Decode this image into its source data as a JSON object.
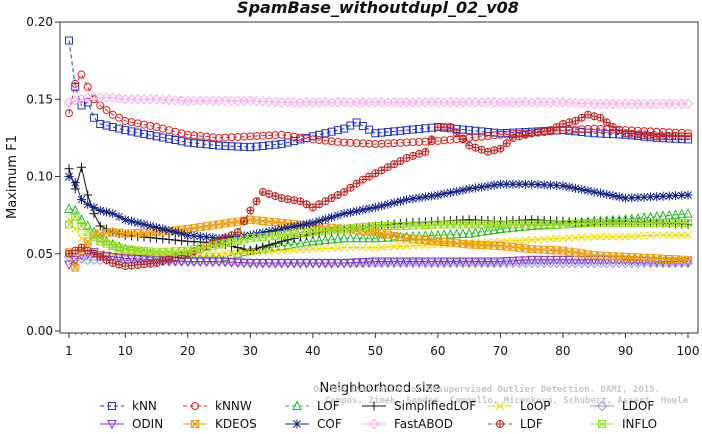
{
  "chart_data": {
    "type": "line",
    "title": "SpamBase_withoutdupl_02_v08",
    "xlabel": "Neighborhood size",
    "ylabel": "Maximum F1",
    "xlim": [
      1,
      100
    ],
    "ylim": [
      0,
      0.2
    ],
    "x_ticks": [
      "1",
      "10",
      "20",
      "30",
      "40",
      "50",
      "60",
      "70",
      "80",
      "90",
      "100"
    ],
    "y_ticks": [
      "0.00",
      "0.05",
      "0.10",
      "0.15",
      "0.20"
    ],
    "grid": false,
    "legend_position": "bottom",
    "credit_lines": [
      "Campos, Zimek, Sander, Campello, Micenková, Schubert, Assent, Houle",
      "On the Evaluation of Unsupervised Outlier Detection. DAMI, 2015."
    ],
    "series": [
      {
        "name": "kNN",
        "color": "#2233cc",
        "marker": "square",
        "dash": "4,3",
        "x": [
          1,
          2,
          3,
          4,
          5,
          6,
          8,
          10,
          15,
          20,
          25,
          30,
          35,
          40,
          45,
          47,
          50,
          55,
          60,
          65,
          70,
          75,
          80,
          85,
          90,
          95,
          100
        ],
        "y": [
          0.188,
          0.158,
          0.146,
          0.148,
          0.138,
          0.134,
          0.132,
          0.13,
          0.126,
          0.122,
          0.12,
          0.119,
          0.121,
          0.126,
          0.131,
          0.135,
          0.128,
          0.13,
          0.132,
          0.13,
          0.128,
          0.129,
          0.13,
          0.128,
          0.127,
          0.125,
          0.124
        ]
      },
      {
        "name": "kNNW",
        "color": "#dd2222",
        "marker": "circle",
        "dash": "4,3",
        "x": [
          1,
          2,
          3,
          4,
          5,
          6,
          8,
          10,
          15,
          20,
          25,
          30,
          35,
          40,
          45,
          50,
          55,
          60,
          65,
          70,
          75,
          80,
          85,
          90,
          95,
          100
        ],
        "y": [
          0.141,
          0.16,
          0.166,
          0.158,
          0.15,
          0.146,
          0.14,
          0.136,
          0.132,
          0.127,
          0.125,
          0.126,
          0.127,
          0.124,
          0.122,
          0.121,
          0.122,
          0.123,
          0.125,
          0.127,
          0.128,
          0.13,
          0.131,
          0.13,
          0.129,
          0.128
        ]
      },
      {
        "name": "LOF",
        "color": "#22bb22",
        "marker": "triangle",
        "dash": "4,3",
        "x": [
          1,
          2,
          3,
          4,
          5,
          6,
          8,
          10,
          15,
          20,
          25,
          30,
          35,
          40,
          45,
          50,
          55,
          60,
          65,
          70,
          75,
          80,
          85,
          90,
          95,
          100
        ],
        "y": [
          0.079,
          0.078,
          0.072,
          0.068,
          0.064,
          0.06,
          0.056,
          0.053,
          0.049,
          0.047,
          0.047,
          0.052,
          0.055,
          0.058,
          0.06,
          0.06,
          0.061,
          0.062,
          0.063,
          0.066,
          0.068,
          0.069,
          0.071,
          0.072,
          0.074,
          0.076
        ]
      },
      {
        "name": "SimplifiedLOF",
        "color": "#111111",
        "marker": "plus",
        "dash": "",
        "x": [
          1,
          2,
          3,
          4,
          5,
          6,
          8,
          10,
          15,
          20,
          25,
          30,
          35,
          40,
          45,
          50,
          55,
          60,
          65,
          70,
          75,
          80,
          85,
          90,
          95,
          100
        ],
        "y": [
          0.105,
          0.092,
          0.106,
          0.088,
          0.076,
          0.068,
          0.064,
          0.062,
          0.06,
          0.058,
          0.057,
          0.052,
          0.058,
          0.063,
          0.066,
          0.068,
          0.07,
          0.071,
          0.072,
          0.071,
          0.072,
          0.071,
          0.07,
          0.071,
          0.07,
          0.069
        ]
      },
      {
        "name": "LoOP",
        "color": "#eedd00",
        "marker": "x",
        "dash": "",
        "x": [
          1,
          2,
          3,
          4,
          5,
          6,
          8,
          10,
          15,
          20,
          25,
          30,
          35,
          40,
          45,
          50,
          55,
          60,
          65,
          70,
          75,
          80,
          85,
          90,
          95,
          100
        ],
        "y": [
          0.072,
          0.066,
          0.06,
          0.056,
          0.052,
          0.05,
          0.05,
          0.05,
          0.05,
          0.05,
          0.05,
          0.051,
          0.052,
          0.053,
          0.054,
          0.054,
          0.055,
          0.056,
          0.057,
          0.058,
          0.059,
          0.06,
          0.061,
          0.061,
          0.062,
          0.062
        ]
      },
      {
        "name": "LDOF",
        "color": "#9999dd",
        "marker": "diamond",
        "dash": "",
        "x": [
          1,
          2,
          3,
          4,
          5,
          6,
          8,
          10,
          15,
          20,
          25,
          30,
          35,
          40,
          45,
          50,
          55,
          60,
          65,
          70,
          75,
          80,
          85,
          90,
          95,
          100
        ],
        "y": [
          0.048,
          0.047,
          0.047,
          0.046,
          0.046,
          0.046,
          0.046,
          0.046,
          0.045,
          0.045,
          0.045,
          0.044,
          0.044,
          0.044,
          0.044,
          0.044,
          0.044,
          0.044,
          0.044,
          0.044,
          0.044,
          0.044,
          0.044,
          0.044,
          0.044,
          0.044
        ]
      },
      {
        "name": "ODIN",
        "color": "#8833cc",
        "marker": "triangle-down",
        "dash": "",
        "x": [
          1,
          2,
          3,
          4,
          5,
          6,
          8,
          10,
          15,
          20,
          25,
          30,
          35,
          40,
          45,
          50,
          55,
          60,
          65,
          70,
          75,
          80,
          85,
          90,
          95,
          100
        ],
        "y": [
          0.043,
          0.046,
          0.049,
          0.05,
          0.051,
          0.049,
          0.048,
          0.047,
          0.046,
          0.045,
          0.045,
          0.044,
          0.044,
          0.044,
          0.044,
          0.045,
          0.045,
          0.045,
          0.045,
          0.045,
          0.046,
          0.046,
          0.046,
          0.046,
          0.045,
          0.045
        ]
      },
      {
        "name": "KDEOS",
        "color": "#ee9900",
        "marker": "square-x",
        "dash": "",
        "x": [
          1,
          2,
          3,
          4,
          5,
          6,
          8,
          10,
          15,
          20,
          25,
          30,
          35,
          40,
          45,
          50,
          55,
          60,
          65,
          70,
          75,
          80,
          85,
          90,
          95,
          100
        ],
        "y": [
          0.051,
          0.041,
          0.052,
          0.058,
          0.062,
          0.063,
          0.064,
          0.063,
          0.064,
          0.066,
          0.069,
          0.072,
          0.07,
          0.068,
          0.066,
          0.064,
          0.06,
          0.058,
          0.056,
          0.055,
          0.053,
          0.052,
          0.049,
          0.048,
          0.047,
          0.046
        ]
      },
      {
        "name": "COF",
        "color": "#112288",
        "marker": "star",
        "dash": "",
        "x": [
          1,
          2,
          3,
          4,
          5,
          6,
          8,
          10,
          15,
          20,
          25,
          30,
          35,
          40,
          45,
          50,
          55,
          60,
          65,
          70,
          75,
          80,
          85,
          90,
          95,
          100
        ],
        "y": [
          0.1,
          0.096,
          0.085,
          0.082,
          0.08,
          0.078,
          0.076,
          0.072,
          0.067,
          0.062,
          0.06,
          0.062,
          0.066,
          0.07,
          0.076,
          0.08,
          0.085,
          0.088,
          0.092,
          0.095,
          0.095,
          0.094,
          0.09,
          0.086,
          0.087,
          0.088
        ]
      },
      {
        "name": "FastABOD",
        "color": "#ffaaee",
        "marker": "diamond",
        "dash": "",
        "x": [
          1,
          2,
          3,
          4,
          5,
          6,
          8,
          10,
          15,
          20,
          25,
          30,
          35,
          40,
          45,
          50,
          55,
          60,
          65,
          70,
          75,
          80,
          85,
          90,
          95,
          100
        ],
        "y": [
          0.148,
          0.149,
          0.15,
          0.151,
          0.151,
          0.151,
          0.151,
          0.15,
          0.15,
          0.149,
          0.149,
          0.149,
          0.148,
          0.148,
          0.148,
          0.148,
          0.148,
          0.148,
          0.148,
          0.148,
          0.148,
          0.148,
          0.147,
          0.147,
          0.147,
          0.147
        ]
      },
      {
        "name": "LDF",
        "color": "#bb2222",
        "marker": "circle-plus",
        "dash": "4,3",
        "x": [
          1,
          2,
          3,
          4,
          5,
          6,
          8,
          10,
          15,
          20,
          25,
          28,
          30,
          32,
          35,
          38,
          40,
          43,
          45,
          48,
          50,
          53,
          55,
          58,
          60,
          62,
          65,
          68,
          70,
          72,
          75,
          78,
          80,
          82,
          84,
          86,
          88,
          90,
          95,
          100
        ],
        "y": [
          0.05,
          0.052,
          0.054,
          0.052,
          0.05,
          0.048,
          0.044,
          0.042,
          0.044,
          0.05,
          0.058,
          0.064,
          0.078,
          0.09,
          0.086,
          0.084,
          0.08,
          0.086,
          0.09,
          0.098,
          0.102,
          0.108,
          0.112,
          0.116,
          0.132,
          0.132,
          0.12,
          0.116,
          0.118,
          0.125,
          0.128,
          0.13,
          0.134,
          0.136,
          0.14,
          0.138,
          0.132,
          0.128,
          0.126,
          0.126
        ]
      },
      {
        "name": "INFLO",
        "color": "#99dd22",
        "marker": "square-x",
        "dash": "",
        "x": [
          1,
          2,
          3,
          4,
          5,
          6,
          8,
          10,
          15,
          20,
          25,
          30,
          35,
          40,
          45,
          50,
          55,
          60,
          65,
          70,
          75,
          80,
          85,
          90,
          95,
          100
        ],
        "y": [
          0.069,
          0.074,
          0.068,
          0.064,
          0.061,
          0.058,
          0.055,
          0.053,
          0.051,
          0.052,
          0.056,
          0.06,
          0.062,
          0.064,
          0.066,
          0.068,
          0.068,
          0.069,
          0.069,
          0.069,
          0.069,
          0.069,
          0.07,
          0.07,
          0.07,
          0.07
        ]
      }
    ]
  }
}
